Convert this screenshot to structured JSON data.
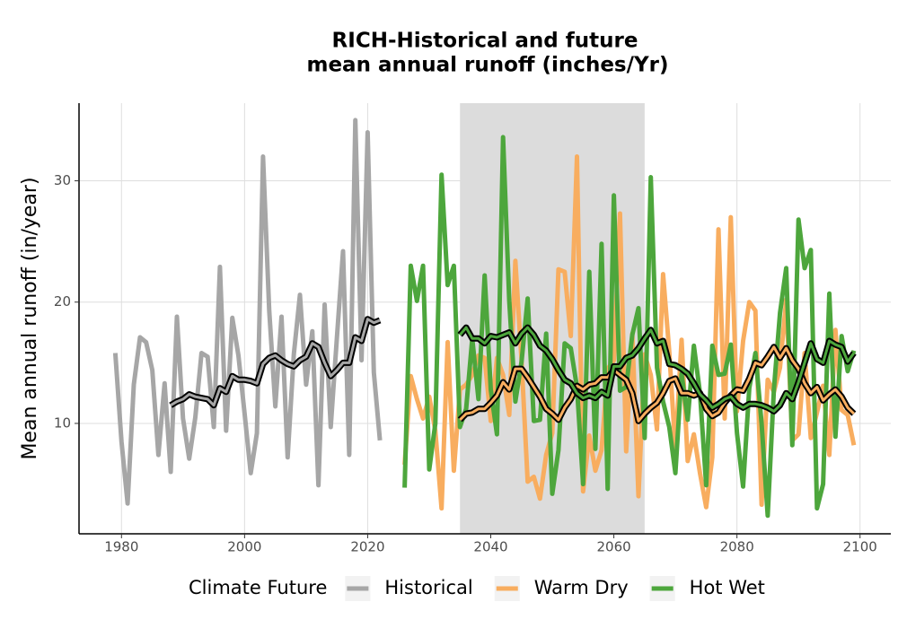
{
  "chart_data": {
    "type": "line",
    "title": [
      "RICH-Historical and future",
      "mean annual runoff (inches/Yr)"
    ],
    "y_label": "Mean annual runoff (in/year)",
    "legend_title": "Climate Future",
    "legend_position": "bottom",
    "grid": true,
    "xlim": [
      1973.1,
      2105
    ],
    "ylim": [
      0.9,
      36.4
    ],
    "xticks": [
      1980,
      2000,
      2020,
      2040,
      2060,
      2080,
      2100
    ],
    "yticks": [
      10,
      20,
      30
    ],
    "shade": [
      2035,
      2065
    ],
    "shade_color": "#dcdcdc",
    "smooth_outline": "#000000",
    "series": [
      {
        "name": "Historical",
        "color": "#a6a6a6",
        "x": [
          1979,
          1980,
          1981,
          1982,
          1983,
          1984,
          1985,
          1986,
          1987,
          1988,
          1989,
          1990,
          1991,
          1992,
          1993,
          1994,
          1995,
          1996,
          1997,
          1998,
          1999,
          2000,
          2001,
          2002,
          2003,
          2004,
          2005,
          2006,
          2007,
          2008,
          2009,
          2010,
          2011,
          2012,
          2013,
          2014,
          2015,
          2016,
          2017,
          2018,
          2019,
          2020,
          2021,
          2022
        ],
        "values": [
          15.8,
          8.5,
          3.4,
          13.2,
          17.1,
          16.7,
          14.4,
          7.4,
          13.3,
          6.0,
          18.8,
          10.4,
          7.1,
          10.5,
          15.8,
          15.5,
          9.7,
          22.9,
          9.4,
          18.7,
          15.6,
          10.8,
          5.9,
          9.2,
          32.0,
          19.3,
          11.4,
          18.8,
          7.2,
          15.7,
          20.6,
          13.2,
          17.6,
          4.9,
          19.8,
          9.7,
          17.1,
          24.2,
          7.4,
          35.0,
          15.2,
          34.0,
          14.2,
          8.6
        ],
        "smooth": [
          null,
          null,
          null,
          null,
          null,
          null,
          null,
          null,
          null,
          11.5,
          11.8,
          12.0,
          12.4,
          12.2,
          12.1,
          12.0,
          11.5,
          12.9,
          12.6,
          13.9,
          13.6,
          13.6,
          13.5,
          13.3,
          14.9,
          15.4,
          15.6,
          15.2,
          14.9,
          14.7,
          15.2,
          15.5,
          16.6,
          16.3,
          15.0,
          13.9,
          14.4,
          15.0,
          15.0,
          17.1,
          16.8,
          18.6,
          18.3,
          18.5
        ]
      },
      {
        "name": "Warm Dry",
        "color": "#f8ad5f",
        "x": [
          2026,
          2027,
          2028,
          2029,
          2030,
          2031,
          2032,
          2033,
          2034,
          2035,
          2036,
          2037,
          2038,
          2039,
          2040,
          2041,
          2042,
          2043,
          2044,
          2045,
          2046,
          2047,
          2048,
          2049,
          2050,
          2051,
          2052,
          2053,
          2054,
          2055,
          2056,
          2057,
          2058,
          2059,
          2060,
          2061,
          2062,
          2063,
          2064,
          2065,
          2066,
          2067,
          2068,
          2069,
          2070,
          2071,
          2072,
          2073,
          2074,
          2075,
          2076,
          2077,
          2078,
          2079,
          2080,
          2081,
          2082,
          2083,
          2084,
          2085,
          2086,
          2087,
          2088,
          2089,
          2090,
          2091,
          2092,
          2093,
          2094,
          2095,
          2096,
          2097,
          2098,
          2099
        ],
        "values": [
          6.6,
          13.9,
          12.0,
          10.4,
          12.2,
          9.4,
          3.0,
          16.7,
          6.1,
          12.8,
          13.2,
          14.0,
          15.6,
          15.4,
          10.2,
          15.4,
          14.0,
          10.7,
          23.4,
          15.2,
          5.2,
          5.6,
          3.8,
          7.4,
          9.2,
          22.7,
          22.5,
          17.2,
          32.0,
          4.4,
          9.0,
          6.1,
          7.8,
          14.5,
          15.2,
          27.3,
          7.7,
          17.4,
          4.0,
          15.7,
          14.0,
          9.5,
          22.3,
          15.9,
          7.8,
          16.9,
          6.9,
          9.1,
          5.9,
          3.1,
          7.2,
          26.0,
          10.4,
          27.0,
          11.0,
          16.8,
          20.0,
          19.3,
          3.3,
          13.6,
          12.6,
          14.6,
          20.2,
          8.6,
          9.1,
          15.8,
          8.8,
          10.9,
          13.1,
          7.4,
          17.7,
          11.1,
          10.7,
          8.2
        ],
        "smooth": [
          null,
          null,
          null,
          null,
          null,
          null,
          null,
          null,
          null,
          10.3,
          10.8,
          10.9,
          11.2,
          11.2,
          11.7,
          12.3,
          13.4,
          12.8,
          14.5,
          14.5,
          13.8,
          13.0,
          12.2,
          11.2,
          10.8,
          10.3,
          11.3,
          12.0,
          13.1,
          12.8,
          13.2,
          13.3,
          13.8,
          13.8,
          14.4,
          14.0,
          13.6,
          12.5,
          10.2,
          10.8,
          11.3,
          11.7,
          12.5,
          13.5,
          13.7,
          12.5,
          12.5,
          12.3,
          12.5,
          11.2,
          10.6,
          10.9,
          11.7,
          12.3,
          12.8,
          12.7,
          13.7,
          15.0,
          14.8,
          15.5,
          16.3,
          15.4,
          16.2,
          15.2,
          14.5,
          13.3,
          12.5,
          13.0,
          11.9,
          12.4,
          12.8,
          12.2,
          11.3,
          10.8
        ]
      },
      {
        "name": "Hot Wet",
        "color": "#4da63c",
        "x": [
          2026,
          2027,
          2028,
          2029,
          2030,
          2031,
          2032,
          2033,
          2034,
          2035,
          2036,
          2037,
          2038,
          2039,
          2040,
          2041,
          2042,
          2043,
          2044,
          2045,
          2046,
          2047,
          2048,
          2049,
          2050,
          2051,
          2052,
          2053,
          2054,
          2055,
          2056,
          2057,
          2058,
          2059,
          2060,
          2061,
          2062,
          2063,
          2064,
          2065,
          2066,
          2067,
          2068,
          2069,
          2070,
          2071,
          2072,
          2073,
          2074,
          2075,
          2076,
          2077,
          2078,
          2079,
          2080,
          2081,
          2082,
          2083,
          2084,
          2085,
          2086,
          2087,
          2088,
          2089,
          2090,
          2091,
          2092,
          2093,
          2094,
          2095,
          2096,
          2097,
          2098,
          2099
        ],
        "values": [
          4.7,
          23.0,
          20.1,
          23.0,
          6.2,
          10.0,
          30.5,
          21.4,
          23.0,
          9.7,
          11.2,
          17.0,
          12.0,
          22.2,
          12.8,
          9.1,
          33.6,
          20.1,
          11.8,
          15.1,
          20.3,
          10.2,
          10.3,
          17.4,
          4.2,
          7.8,
          16.6,
          16.2,
          13.0,
          5.0,
          22.5,
          7.9,
          24.8,
          4.6,
          28.8,
          12.7,
          13.0,
          17.3,
          19.5,
          8.8,
          30.3,
          14.6,
          11.8,
          9.7,
          5.9,
          14.1,
          10.3,
          16.4,
          12.5,
          4.9,
          16.4,
          14.0,
          14.1,
          16.5,
          9.2,
          4.8,
          12.9,
          15.8,
          10.0,
          2.4,
          12.8,
          19.1,
          22.8,
          8.2,
          26.8,
          22.8,
          24.3,
          3.0,
          5.0,
          20.7,
          8.9,
          17.2,
          14.3,
          16.0
        ],
        "smooth": [
          null,
          null,
          null,
          null,
          null,
          null,
          null,
          null,
          null,
          17.3,
          17.9,
          17.0,
          17.0,
          16.6,
          17.2,
          17.1,
          17.3,
          17.5,
          16.6,
          17.4,
          17.9,
          17.3,
          16.4,
          16.0,
          15.3,
          14.4,
          13.6,
          13.3,
          12.5,
          12.1,
          12.3,
          12.1,
          12.6,
          12.3,
          14.7,
          14.7,
          15.4,
          15.6,
          16.2,
          17.0,
          17.7,
          16.6,
          16.8,
          14.9,
          14.8,
          14.5,
          14.1,
          13.3,
          12.4,
          11.9,
          11.3,
          11.6,
          12.0,
          12.2,
          11.6,
          11.3,
          11.6,
          11.6,
          11.5,
          11.3,
          11.0,
          11.5,
          12.5,
          12.0,
          13.4,
          15.0,
          16.6,
          15.3,
          15.0,
          16.8,
          16.5,
          16.3,
          15.1,
          15.8
        ]
      }
    ]
  }
}
